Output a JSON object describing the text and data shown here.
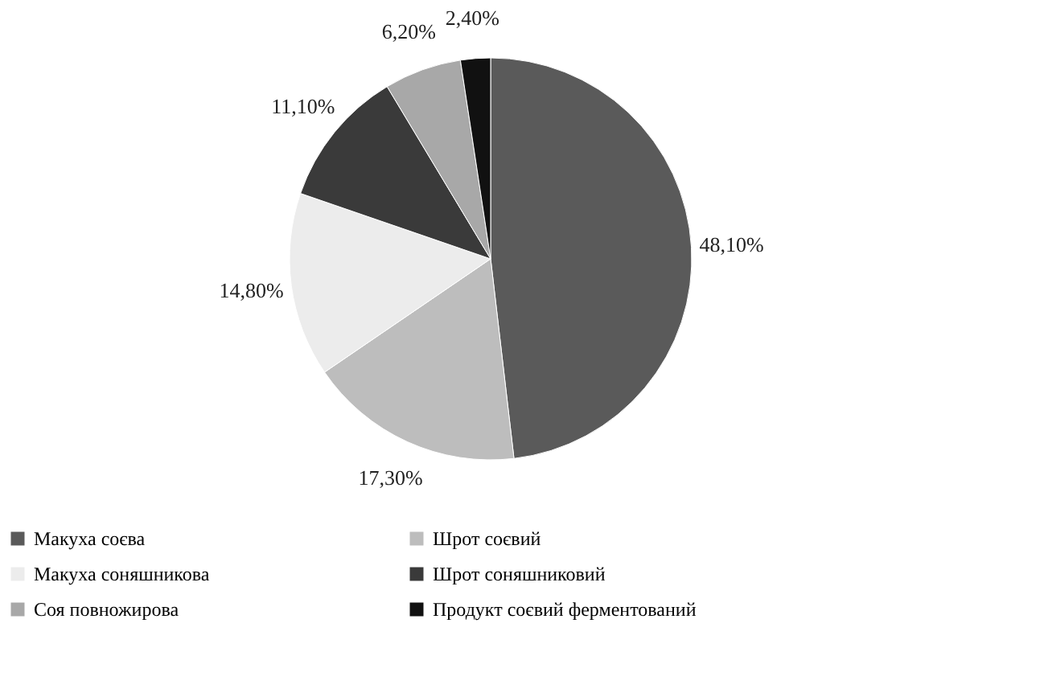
{
  "chart_data": {
    "type": "pie",
    "categories": [
      "Макуха соєва",
      "Шрот соєвий",
      "Макуха соняшникова",
      "Шрот соняшниковий",
      "Соя повножирова",
      "Продукт соєвий ферментований"
    ],
    "values": [
      48.1,
      17.3,
      14.8,
      11.1,
      6.2,
      2.4
    ],
    "value_labels": [
      "48,10%",
      "17,30%",
      "14,80%",
      "11,10%",
      "6,20%",
      "2,40%"
    ],
    "colors": [
      "#5a5a5a",
      "#bdbdbd",
      "#ececec",
      "#3a3a3a",
      "#a8a8a8",
      "#111111"
    ],
    "legend": "bottom"
  }
}
